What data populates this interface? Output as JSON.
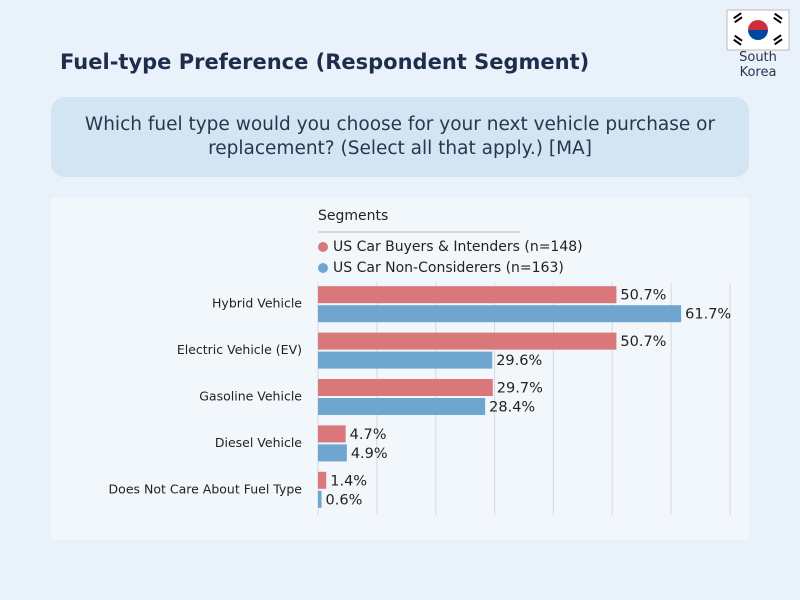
{
  "title": "Fuel-type Preference (Respondent Segment)",
  "country": "South Korea",
  "question": "Which fuel type would you choose for your next vehicle purchase or replacement? (Select all that apply.) [MA]",
  "chart_data": {
    "type": "bar",
    "orientation": "horizontal",
    "legend_title": "Segments",
    "categories": [
      "Hybrid Vehicle",
      "Electric Vehicle (EV)",
      "Gasoline Vehicle",
      "Diesel Vehicle",
      "Does Not Care About Fuel Type"
    ],
    "series": [
      {
        "name": "US Car Buyers & Intenders (n=148)",
        "color": "#d9777a",
        "values": [
          50.7,
          50.7,
          29.7,
          4.7,
          1.4
        ],
        "value_labels": [
          "50.7%",
          "50.7%",
          "29.7%",
          "4.7%",
          "1.4%"
        ]
      },
      {
        "name": "US Car Non-Considerers (n=163)",
        "color": "#6fa6cf",
        "values": [
          61.7,
          29.6,
          28.4,
          4.9,
          0.6
        ],
        "value_labels": [
          "61.7%",
          "29.6%",
          "28.4%",
          "4.9%",
          "0.6%"
        ]
      }
    ],
    "xlim": [
      0,
      70
    ],
    "xticks": [
      0,
      10,
      20,
      30,
      40,
      50,
      60,
      70
    ],
    "grid": true
  }
}
